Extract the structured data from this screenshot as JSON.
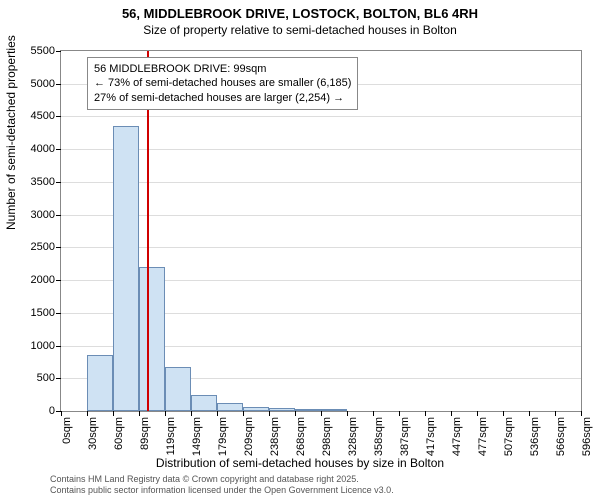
{
  "titles": {
    "main": "56, MIDDLEBROOK DRIVE, LOSTOCK, BOLTON, BL6 4RH",
    "sub": "Size of property relative to semi-detached houses in Bolton"
  },
  "axes": {
    "y_label": "Number of semi-detached properties",
    "x_label": "Distribution of semi-detached houses by size in Bolton",
    "y_min": 0,
    "y_max": 5500,
    "y_tick_step": 500,
    "x_ticks": [
      0,
      30,
      60,
      89,
      119,
      149,
      179,
      209,
      238,
      268,
      298,
      328,
      358,
      387,
      417,
      447,
      477,
      507,
      536,
      566,
      596
    ],
    "x_tick_unit": "sqm"
  },
  "chart": {
    "type": "histogram",
    "bar_color": "#cfe2f3",
    "bar_border_color": "#6b8db5",
    "grid_color": "#dddddd",
    "border_color": "#888888",
    "ref_line_color": "#d00000",
    "background_color": "#ffffff",
    "bars": [
      {
        "x_start": 30,
        "x_end": 60,
        "value": 850
      },
      {
        "x_start": 60,
        "x_end": 89,
        "value": 4350
      },
      {
        "x_start": 89,
        "x_end": 119,
        "value": 2200
      },
      {
        "x_start": 119,
        "x_end": 149,
        "value": 680
      },
      {
        "x_start": 149,
        "x_end": 179,
        "value": 250
      },
      {
        "x_start": 179,
        "x_end": 209,
        "value": 130
      },
      {
        "x_start": 209,
        "x_end": 238,
        "value": 60
      },
      {
        "x_start": 238,
        "x_end": 268,
        "value": 50
      },
      {
        "x_start": 268,
        "x_end": 298,
        "value": 30
      },
      {
        "x_start": 298,
        "x_end": 328,
        "value": 20
      }
    ],
    "ref_line_x": 99
  },
  "info_box": {
    "line1": "56 MIDDLEBROOK DRIVE: 99sqm",
    "line2": "← 73% of semi-detached houses are smaller (6,185)",
    "line3": "27% of semi-detached houses are larger (2,254) →"
  },
  "footer": {
    "line1": "Contains HM Land Registry data © Crown copyright and database right 2025.",
    "line2": "Contains public sector information licensed under the Open Government Licence v3.0."
  }
}
